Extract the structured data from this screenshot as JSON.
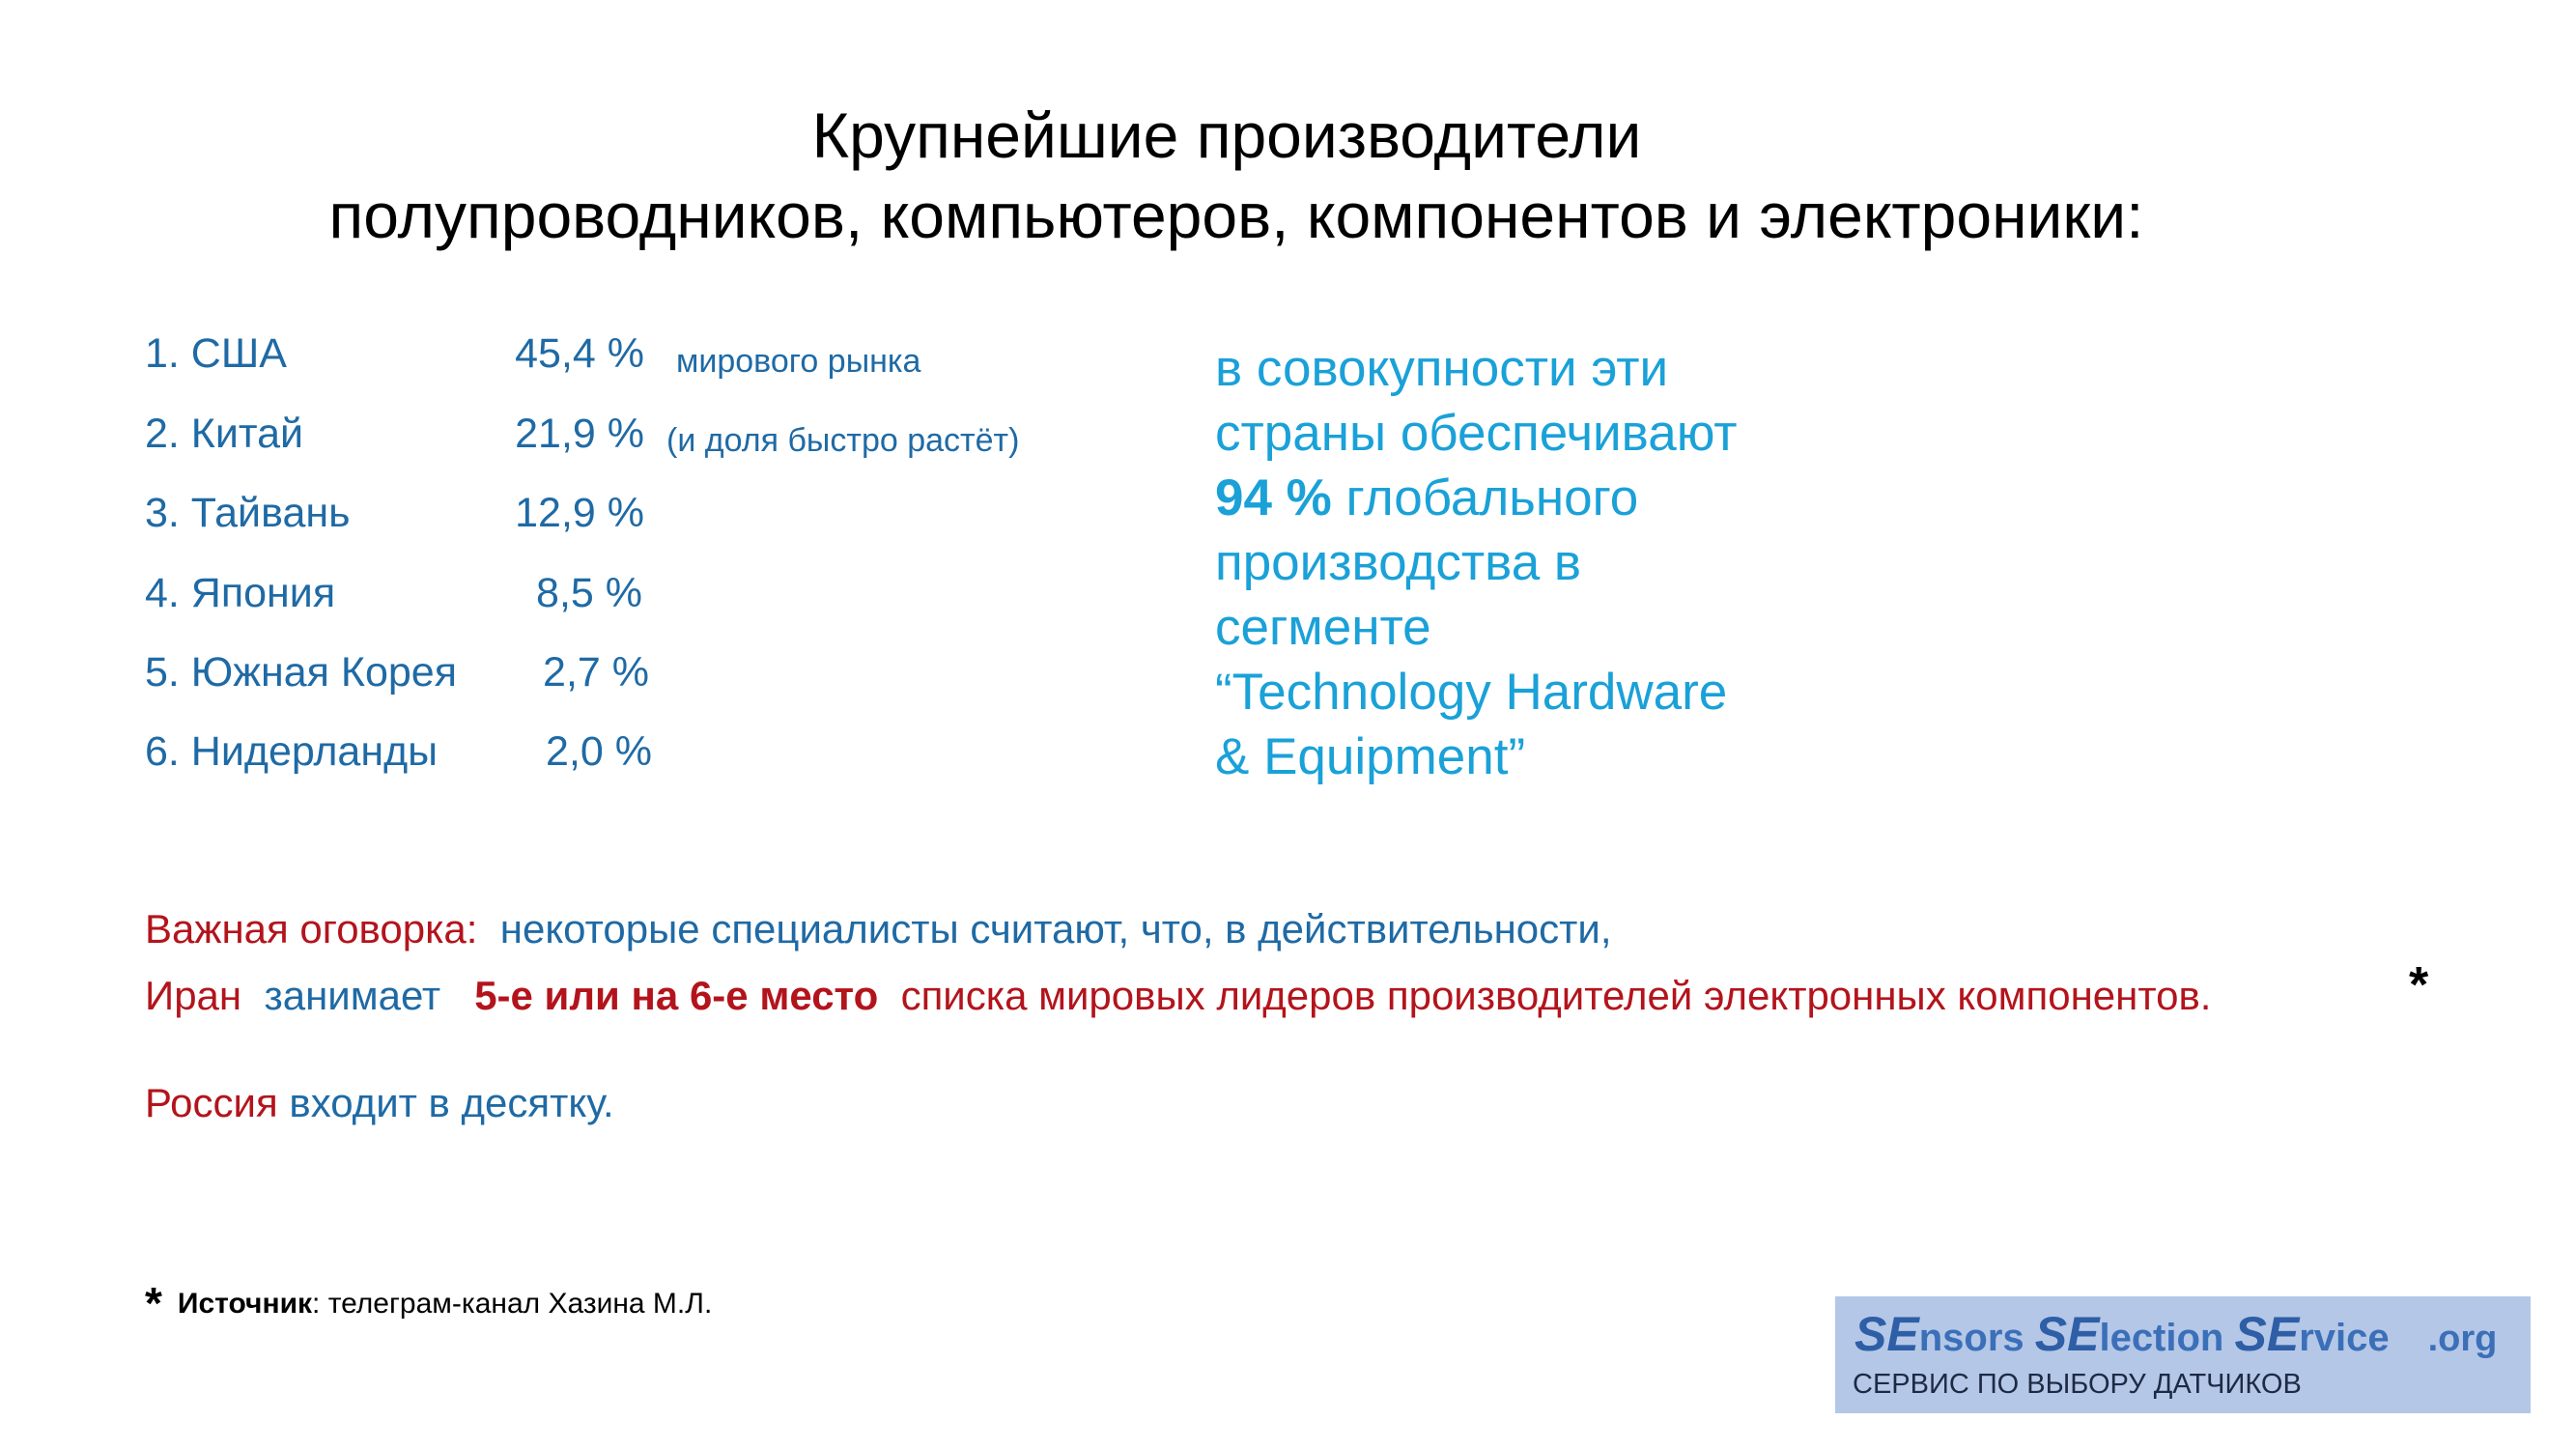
{
  "title": {
    "line1": "Крупнейшие производители",
    "line2": "полупроводников, компьютеров, компонентов и электроники:"
  },
  "ranking": [
    {
      "label": "1. США",
      "value": "45,4 %",
      "note": "мирового рынка"
    },
    {
      "label": "2. Китай",
      "value": "21,9 %",
      "note": "(и доля быстро растёт)"
    },
    {
      "label": "3. Тайвань",
      "value": "12,9 %",
      "note": ""
    },
    {
      "label": "4. Япония",
      "value": "8,5 %",
      "note": ""
    },
    {
      "label": "5. Южная Корея",
      "value": "2,7 %",
      "note": ""
    },
    {
      "label": "6. Нидерланды",
      "value": "2,0 %",
      "note": ""
    }
  ],
  "summary": {
    "l1": "в совокупности эти",
    "l2": "страны обеспечивают",
    "l3_bold": "94 %",
    "l3_rest": " глобального",
    "l4": "производства в",
    "l5": "сегменте",
    "l6": "“Technology Hardware",
    "l7": "& Equipment”"
  },
  "caveat": {
    "label": "Важная оговорка:",
    "text1": "некоторые специалисты  считают, что, в действительности,",
    "iran": "Иран",
    "takes": "занимает",
    "place": "5-е или на 6-е место",
    "rest": "списка мировых лидеров производителей электронных компонентов.",
    "star": "*"
  },
  "russia": {
    "country": "Россия",
    "text": "входит в десятку."
  },
  "source": {
    "star": "*",
    "label": "Источник",
    "text": ":  телеграм-канал Хазина М.Л."
  },
  "logo": {
    "p1_big": "SE",
    "p1_rest": "nsors ",
    "p2_big": "SE",
    "p2_rest": "lection ",
    "p3_big": "SE",
    "p3_rest": "rvice",
    "org": ".org",
    "subtitle": "СЕРВИС ПО ВЫБОРУ ДАТЧИКОВ"
  },
  "colors": {
    "primary_blue": "#1f6aa5",
    "summary_blue": "#1aa1d8",
    "warning_red": "#b3141c",
    "logo_bg": "#b4c7e7"
  }
}
